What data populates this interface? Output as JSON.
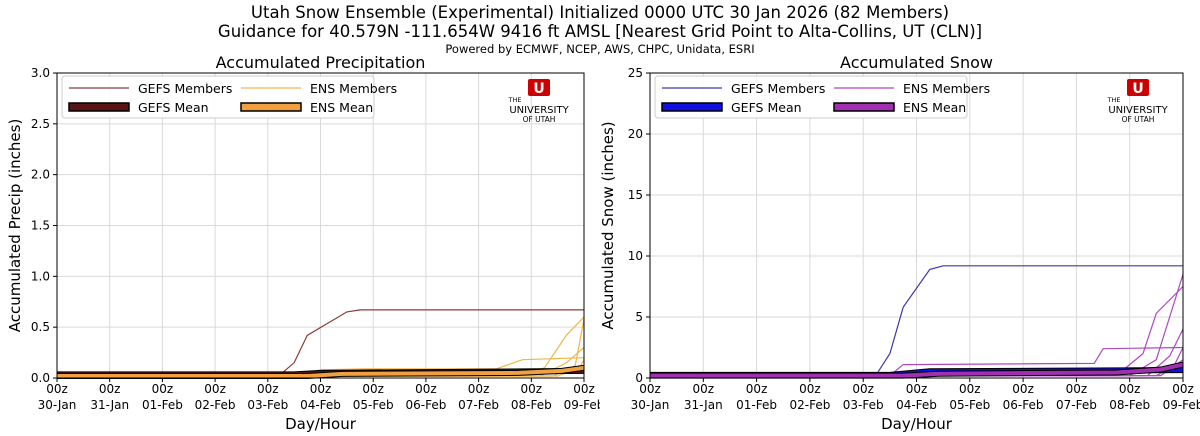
{
  "header": {
    "title_line1": "Utah Snow Ensemble (Experimental) Initialized 0000 UTC 30 Jan 2026 (82 Members)",
    "title_line2": "Guidance for 40.579N -111.654W 9416 ft AMSL [Nearest Grid Point to Alta-Collins, UT (CLN)]",
    "credits": "Powered by ECMWF, NCEP, AWS, CHPC, Unidata, ESRI"
  },
  "logo": {
    "line1": "THE",
    "line2": "UNIVERSITY",
    "line3": "OF UTAH",
    "glyph": "U"
  },
  "chart_data": [
    {
      "type": "line",
      "title": "Accumulated Precipitation",
      "xlabel": "Day/Hour",
      "ylabel": "Accumulated Precip (inches)",
      "ylim": [
        0,
        3.0
      ],
      "yticks": [
        "0.0",
        "0.5",
        "1.0",
        "1.5",
        "2.0",
        "2.5",
        "3.0"
      ],
      "xlim": [
        0,
        240
      ],
      "x_hours": [
        0,
        24,
        48,
        72,
        96,
        120,
        144,
        168,
        192,
        216,
        240
      ],
      "xtick_hour": [
        "00z",
        "00z",
        "00z",
        "00z",
        "00z",
        "00z",
        "00z",
        "00z",
        "00z",
        "00z",
        "00z"
      ],
      "xtick_day": [
        "30-Jan",
        "31-Jan",
        "01-Feb",
        "02-Feb",
        "03-Feb",
        "04-Feb",
        "05-Feb",
        "06-Feb",
        "07-Feb",
        "08-Feb",
        "09-Feb"
      ],
      "grid": true,
      "legend": {
        "placement": "top-left",
        "columns": 2
      },
      "series": [
        {
          "name": "GEFS Members",
          "role": "member",
          "color": "#8b3a3a",
          "lines": [
            [
              [
                0,
                0.04
              ],
              [
                102,
                0.04
              ],
              [
                108,
                0.15
              ],
              [
                114,
                0.42
              ],
              [
                132,
                0.65
              ],
              [
                138,
                0.67
              ],
              [
                240,
                0.67
              ]
            ],
            [
              [
                0,
                0.03
              ],
              [
                108,
                0.03
              ],
              [
                120,
                0.06
              ],
              [
                240,
                0.07
              ]
            ],
            [
              [
                0,
                0.02
              ],
              [
                114,
                0.02
              ],
              [
                126,
                0.05
              ],
              [
                240,
                0.06
              ]
            ],
            [
              [
                0,
                0.03
              ],
              [
                240,
                0.05
              ]
            ]
          ]
        },
        {
          "name": "ENS Members",
          "role": "member",
          "color": "#f0b44a",
          "lines": [
            [
              [
                0,
                0.02
              ],
              [
                108,
                0.02
              ],
              [
                120,
                0.08
              ],
              [
                140,
                0.09
              ],
              [
                200,
                0.09
              ],
              [
                212,
                0.18
              ],
              [
                226,
                0.19
              ],
              [
                240,
                0.2
              ]
            ],
            [
              [
                0,
                0.02
              ],
              [
                210,
                0.02
              ],
              [
                222,
                0.1
              ],
              [
                232,
                0.42
              ],
              [
                240,
                0.6
              ]
            ],
            [
              [
                0,
                0.02
              ],
              [
                220,
                0.02
              ],
              [
                232,
                0.15
              ],
              [
                240,
                0.3
              ]
            ],
            [
              [
                0,
                0.02
              ],
              [
                226,
                0.02
              ],
              [
                236,
                0.12
              ],
              [
                240,
                0.58
              ]
            ],
            [
              [
                0,
                0.02
              ],
              [
                228,
                0.02
              ],
              [
                238,
                0.1
              ],
              [
                240,
                0.18
              ]
            ],
            [
              [
                0,
                0.02
              ],
              [
                114,
                0.02
              ],
              [
                126,
                0.05
              ],
              [
                240,
                0.07
              ]
            ]
          ]
        },
        {
          "name": "GEFS Mean",
          "role": "mean",
          "color": "#5a1414",
          "line": [
            [
              0,
              0.035
            ],
            [
              108,
              0.035
            ],
            [
              120,
              0.05
            ],
            [
              240,
              0.07
            ]
          ]
        },
        {
          "name": "ENS Mean",
          "role": "mean",
          "color": "#f0a040",
          "line": [
            [
              0,
              0.02
            ],
            [
              114,
              0.02
            ],
            [
              130,
              0.04
            ],
            [
              210,
              0.05
            ],
            [
              230,
              0.07
            ],
            [
              240,
              0.1
            ]
          ]
        }
      ]
    },
    {
      "type": "line",
      "title": "Accumulated Snow",
      "xlabel": "Day/Hour",
      "ylabel": "Accumulated Snow (inches)",
      "ylim": [
        0,
        25
      ],
      "yticks": [
        "0",
        "5",
        "10",
        "15",
        "20",
        "25"
      ],
      "xlim": [
        0,
        240
      ],
      "x_hours": [
        0,
        24,
        48,
        72,
        96,
        120,
        144,
        168,
        192,
        216,
        240
      ],
      "xtick_hour": [
        "00z",
        "00z",
        "00z",
        "00z",
        "00z",
        "00z",
        "00z",
        "00z",
        "00z",
        "00z",
        "00z"
      ],
      "xtick_day": [
        "30-Jan",
        "31-Jan",
        "01-Feb",
        "02-Feb",
        "03-Feb",
        "04-Feb",
        "05-Feb",
        "06-Feb",
        "07-Feb",
        "08-Feb",
        "09-Feb"
      ],
      "grid": true,
      "legend": {
        "placement": "top-left",
        "columns": 2
      },
      "series": [
        {
          "name": "GEFS Members",
          "role": "member",
          "color": "#3a3aa8",
          "lines": [
            [
              [
                0,
                0.3
              ],
              [
                102,
                0.3
              ],
              [
                108,
                2.0
              ],
              [
                114,
                5.8
              ],
              [
                126,
                8.9
              ],
              [
                132,
                9.2
              ],
              [
                240,
                9.2
              ]
            ],
            [
              [
                0,
                0.2
              ],
              [
                108,
                0.2
              ],
              [
                120,
                0.6
              ],
              [
                240,
                0.7
              ]
            ],
            [
              [
                0,
                0.2
              ],
              [
                240,
                0.5
              ]
            ]
          ]
        },
        {
          "name": "ENS Members",
          "role": "member",
          "color": "#b048c0",
          "lines": [
            [
              [
                0,
                0.2
              ],
              [
                108,
                0.2
              ],
              [
                114,
                1.1
              ],
              [
                200,
                1.2
              ],
              [
                204,
                2.4
              ],
              [
                240,
                2.5
              ]
            ],
            [
              [
                0,
                0.2
              ],
              [
                210,
                0.2
              ],
              [
                222,
                2.0
              ],
              [
                228,
                5.3
              ],
              [
                240,
                7.5
              ]
            ],
            [
              [
                0,
                0.2
              ],
              [
                216,
                0.2
              ],
              [
                228,
                1.5
              ],
              [
                240,
                8.5
              ]
            ],
            [
              [
                0,
                0.2
              ],
              [
                224,
                0.2
              ],
              [
                234,
                1.8
              ],
              [
                240,
                4.0
              ]
            ],
            [
              [
                0,
                0.2
              ],
              [
                228,
                0.2
              ],
              [
                236,
                1.0
              ],
              [
                240,
                2.5
              ]
            ],
            [
              [
                0,
                0.2
              ],
              [
                230,
                0.2
              ],
              [
                240,
                1.5
              ]
            ],
            [
              [
                0,
                0.2
              ],
              [
                120,
                0.3
              ],
              [
                240,
                0.6
              ]
            ]
          ]
        },
        {
          "name": "GEFS Mean",
          "role": "mean",
          "color": "#1010e0",
          "line": [
            [
              0,
              0.25
            ],
            [
              108,
              0.25
            ],
            [
              126,
              0.55
            ],
            [
              240,
              0.65
            ]
          ]
        },
        {
          "name": "ENS Mean",
          "role": "mean",
          "color": "#a030b0",
          "line": [
            [
              0,
              0.2
            ],
            [
              114,
              0.2
            ],
            [
              130,
              0.35
            ],
            [
              210,
              0.45
            ],
            [
              230,
              0.7
            ],
            [
              240,
              1.1
            ]
          ]
        }
      ]
    }
  ]
}
